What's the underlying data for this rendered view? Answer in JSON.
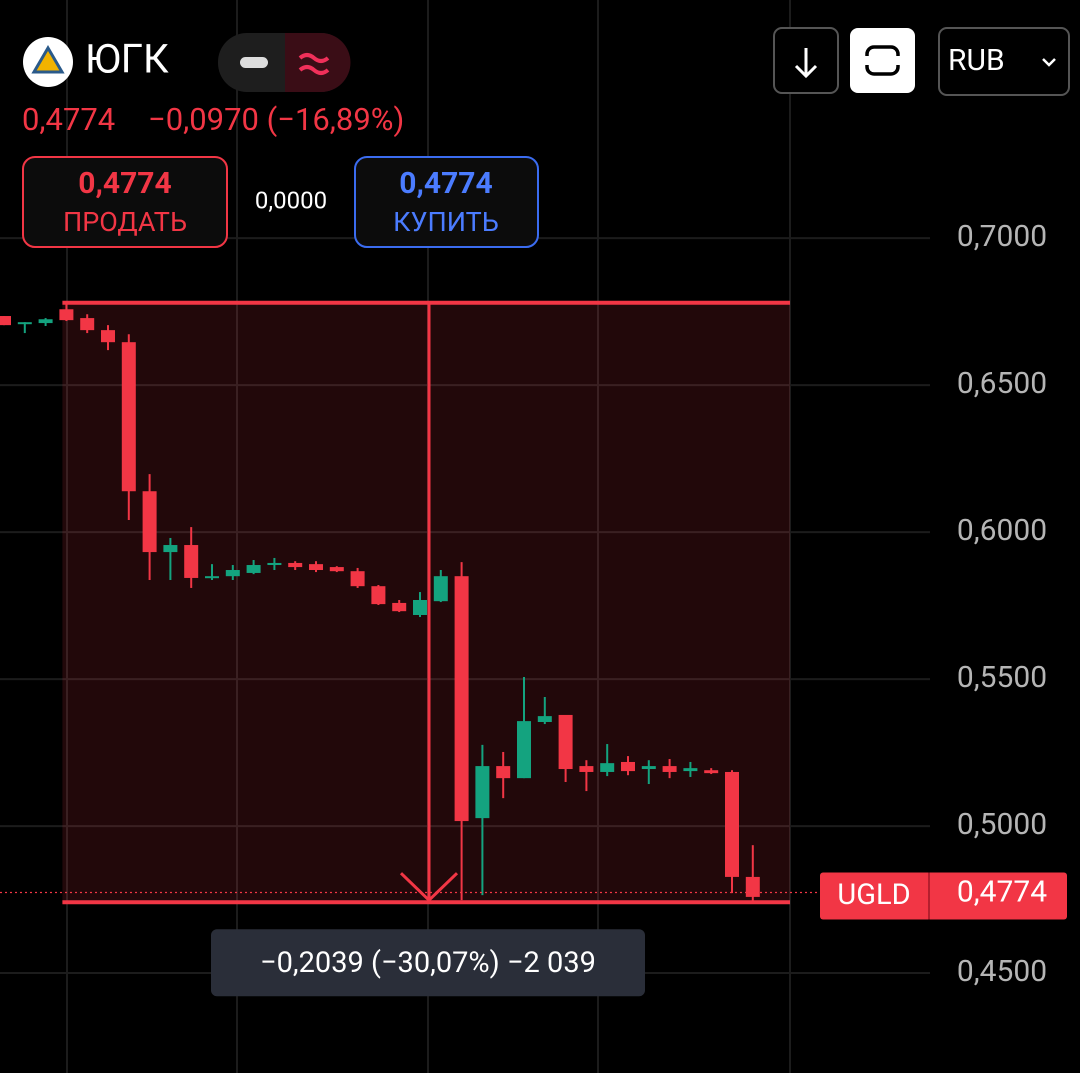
{
  "header": {
    "ticker_name": "ЮГК",
    "price": "0,4774",
    "change": "−0,0970 (−16,89%)",
    "currency": "RUB"
  },
  "trade": {
    "sell_price": "0,4774",
    "sell_label": "ПРОДАТЬ",
    "spread": "0,0000",
    "buy_price": "0,4774",
    "buy_label": "КУПИТЬ"
  },
  "chart_data": {
    "type": "candlestick",
    "ylim": [
      0.416,
      0.781
    ],
    "yticks": [
      {
        "value": 0.7,
        "label": "0,7000"
      },
      {
        "value": 0.65,
        "label": "0,6500"
      },
      {
        "value": 0.6,
        "label": "0,6000"
      },
      {
        "value": 0.55,
        "label": "0,5500"
      },
      {
        "value": 0.5,
        "label": "0,5000"
      },
      {
        "value": 0.45,
        "label": "0,4500"
      }
    ],
    "grid": true,
    "up_color": "#14a37f",
    "down_color": "#f23645",
    "open": [
      0.6735,
      0.6711,
      0.6711,
      0.6758,
      0.6728,
      0.6687,
      0.6646,
      0.6139,
      0.5932,
      0.5956,
      0.5844,
      0.585,
      0.5861,
      0.5888,
      0.5895,
      0.5891,
      0.5881,
      0.5867,
      0.5816,
      0.5759,
      0.5718,
      0.5765,
      0.585,
      0.5027,
      0.5204,
      0.5163,
      0.5354,
      0.5378,
      0.5204,
      0.5184,
      0.5218,
      0.5194,
      0.5204,
      0.5187,
      0.519,
      0.5184,
      0.4827
    ],
    "high": [
      0.6735,
      0.6714,
      0.6728,
      0.6779,
      0.6741,
      0.6704,
      0.6673,
      0.6197,
      0.598,
      0.6017,
      0.5891,
      0.5888,
      0.5905,
      0.5912,
      0.5901,
      0.5901,
      0.5884,
      0.5878,
      0.582,
      0.5769,
      0.5796,
      0.5871,
      0.5898,
      0.5276,
      0.5252,
      0.5507,
      0.5439,
      0.5378,
      0.5224,
      0.5279,
      0.5238,
      0.5224,
      0.5228,
      0.5218,
      0.5197,
      0.519,
      0.4935
    ],
    "low": [
      0.6704,
      0.6677,
      0.6701,
      0.6718,
      0.6677,
      0.6619,
      0.6041,
      0.5837,
      0.5837,
      0.581,
      0.5837,
      0.5837,
      0.5857,
      0.5871,
      0.5871,
      0.5864,
      0.5864,
      0.581,
      0.5752,
      0.5728,
      0.5711,
      0.5762,
      0.4748,
      0.4765,
      0.5095,
      0.5163,
      0.5347,
      0.515,
      0.5119,
      0.517,
      0.5173,
      0.5143,
      0.5163,
      0.5167,
      0.5177,
      0.4772,
      0.4741
    ],
    "close": [
      0.6704,
      0.6714,
      0.6724,
      0.6721,
      0.6687,
      0.6646,
      0.6139,
      0.5932,
      0.5956,
      0.5844,
      0.585,
      0.5871,
      0.5888,
      0.5895,
      0.5881,
      0.5871,
      0.5867,
      0.5816,
      0.5755,
      0.5731,
      0.5769,
      0.585,
      0.5017,
      0.5204,
      0.5163,
      0.5357,
      0.5374,
      0.5194,
      0.5184,
      0.5214,
      0.5187,
      0.5204,
      0.5184,
      0.5197,
      0.518,
      0.4827,
      0.4759
    ],
    "measure": {
      "from": 0.678,
      "to": 0.4741,
      "label": "−0,2039 (−30,07%) −2 039"
    },
    "last_ticker": "UGLD",
    "last_price": {
      "value": 0.4774,
      "label": "0,4774"
    }
  }
}
